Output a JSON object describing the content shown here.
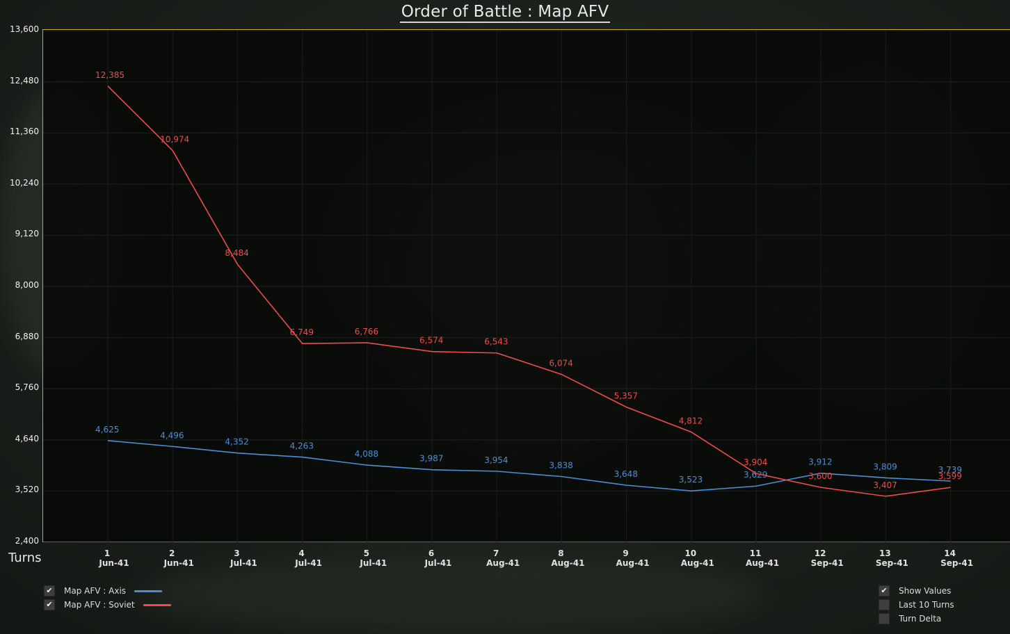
{
  "window": {
    "title": "Order of Battle : Map AFV"
  },
  "axis": {
    "turns_label": "Turns"
  },
  "legend": {
    "items": [
      {
        "label": "Map AFV : Axis",
        "checked": true,
        "color": "#4a8fd6"
      },
      {
        "label": "Map AFV : Soviet",
        "checked": true,
        "color": "#f04a4a"
      }
    ]
  },
  "options": {
    "items": [
      {
        "label": "Show Values",
        "checked": true
      },
      {
        "label": "Last 10 Turns",
        "checked": false
      },
      {
        "label": "Turn Delta",
        "checked": false
      }
    ]
  },
  "chart_data": {
    "type": "line",
    "title": "Order of Battle : Map AFV",
    "xlabel": "Turns",
    "ylabel": "",
    "ylim": [
      2400,
      13600
    ],
    "yticks": [
      "2,400",
      "3,520",
      "4,640",
      "5,760",
      "6,880",
      "8,000",
      "9,120",
      "10,240",
      "11,360",
      "12,480",
      "13,600"
    ],
    "x": [
      1,
      2,
      3,
      4,
      5,
      6,
      7,
      8,
      9,
      10,
      11,
      12,
      13,
      14
    ],
    "categories": [
      "Jun-41",
      "Jun-41",
      "Jul-41",
      "Jul-41",
      "Jul-41",
      "Jul-41",
      "Aug-41",
      "Aug-41",
      "Aug-41",
      "Aug-41",
      "Aug-41",
      "Sep-41",
      "Sep-41",
      "Sep-41"
    ],
    "grid": true,
    "series": [
      {
        "name": "Map AFV : Axis",
        "color": "#4a8fd6",
        "values": [
          4625,
          4496,
          4352,
          4263,
          4088,
          3987,
          3954,
          3838,
          3648,
          3523,
          3629,
          3912,
          3809,
          3739
        ],
        "labels": [
          "4,625",
          "4,496",
          "4,352",
          "4,263",
          "4,088",
          "3,987",
          "3,954",
          "3,838",
          "3,648",
          "3,523",
          "3,629",
          "3,912",
          "3,809",
          "3,739"
        ]
      },
      {
        "name": "Map AFV : Soviet",
        "color": "#f04a4a",
        "values": [
          12385,
          10974,
          8484,
          6749,
          6766,
          6574,
          6543,
          6074,
          5357,
          4812,
          3904,
          3600,
          3407,
          3599
        ],
        "labels": [
          "12,385",
          "10,974",
          "8,484",
          "6,749",
          "6,766",
          "6,574",
          "6,543",
          "6,074",
          "5,357",
          "4,812",
          "3,904",
          "3,600",
          "3,407",
          "3,599"
        ]
      }
    ]
  }
}
